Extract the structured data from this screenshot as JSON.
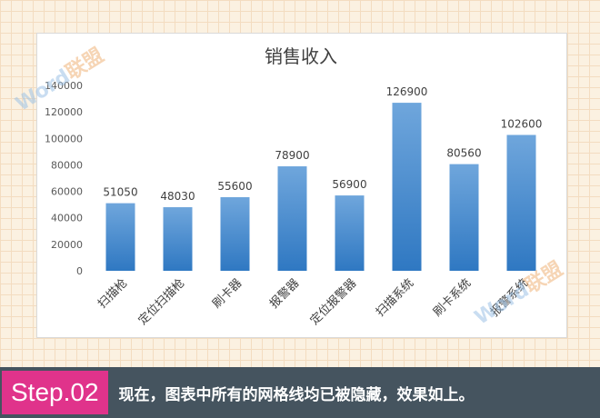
{
  "chart_data": {
    "type": "bar",
    "title": "销售收入",
    "categories": [
      "扫描枪",
      "定位扫描枪",
      "刷卡器",
      "报警器",
      "定位报警器",
      "扫描系统",
      "刷卡系统",
      "报警系统"
    ],
    "values": [
      51050,
      48030,
      55600,
      78900,
      56900,
      126900,
      80560,
      102600
    ],
    "yticks": [
      "0",
      "20000",
      "40000",
      "60000",
      "80000",
      "100000",
      "120000",
      "140000"
    ],
    "ylim": [
      0,
      140000
    ],
    "grid": false,
    "bar_color_top": "#6fa6dc",
    "bar_color_bottom": "#2f78c2"
  },
  "watermark": {
    "latin": "Word",
    "cn": "联盟"
  },
  "footer": {
    "step": "Step.02",
    "caption": "现在，图表中所有的网格线均已被隐藏，效果如上。"
  }
}
